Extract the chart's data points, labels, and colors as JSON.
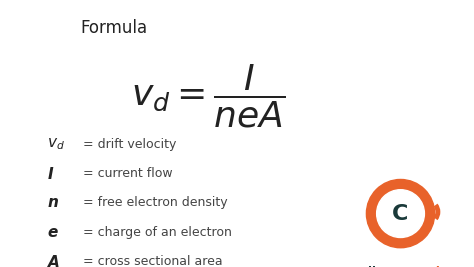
{
  "bg_color": "#ffffff",
  "title": "Formula",
  "title_color": "#222222",
  "title_fontsize": 12,
  "formula_fontsize": 26,
  "legend_sym_fontsize": 11,
  "legend_desc_fontsize": 9,
  "text_color": "#222222",
  "desc_color": "#444444",
  "logo_circle_color": "#e8622a",
  "logo_c_color": "#1a3a3a",
  "logo_fontsize": 8.5,
  "legend_items": [
    {
      "symbol": "$\\boldsymbol{v_d}$",
      "desc": "= drift velocity"
    },
    {
      "symbol": "$\\boldsymbol{I}$",
      "desc": "= current flow"
    },
    {
      "symbol": "$\\boldsymbol{n}$",
      "desc": "= free electron density"
    },
    {
      "symbol": "$\\boldsymbol{e}$",
      "desc": "= charge of an electron"
    },
    {
      "symbol": "$\\boldsymbol{A}$",
      "desc": "= cross sectional area"
    }
  ]
}
